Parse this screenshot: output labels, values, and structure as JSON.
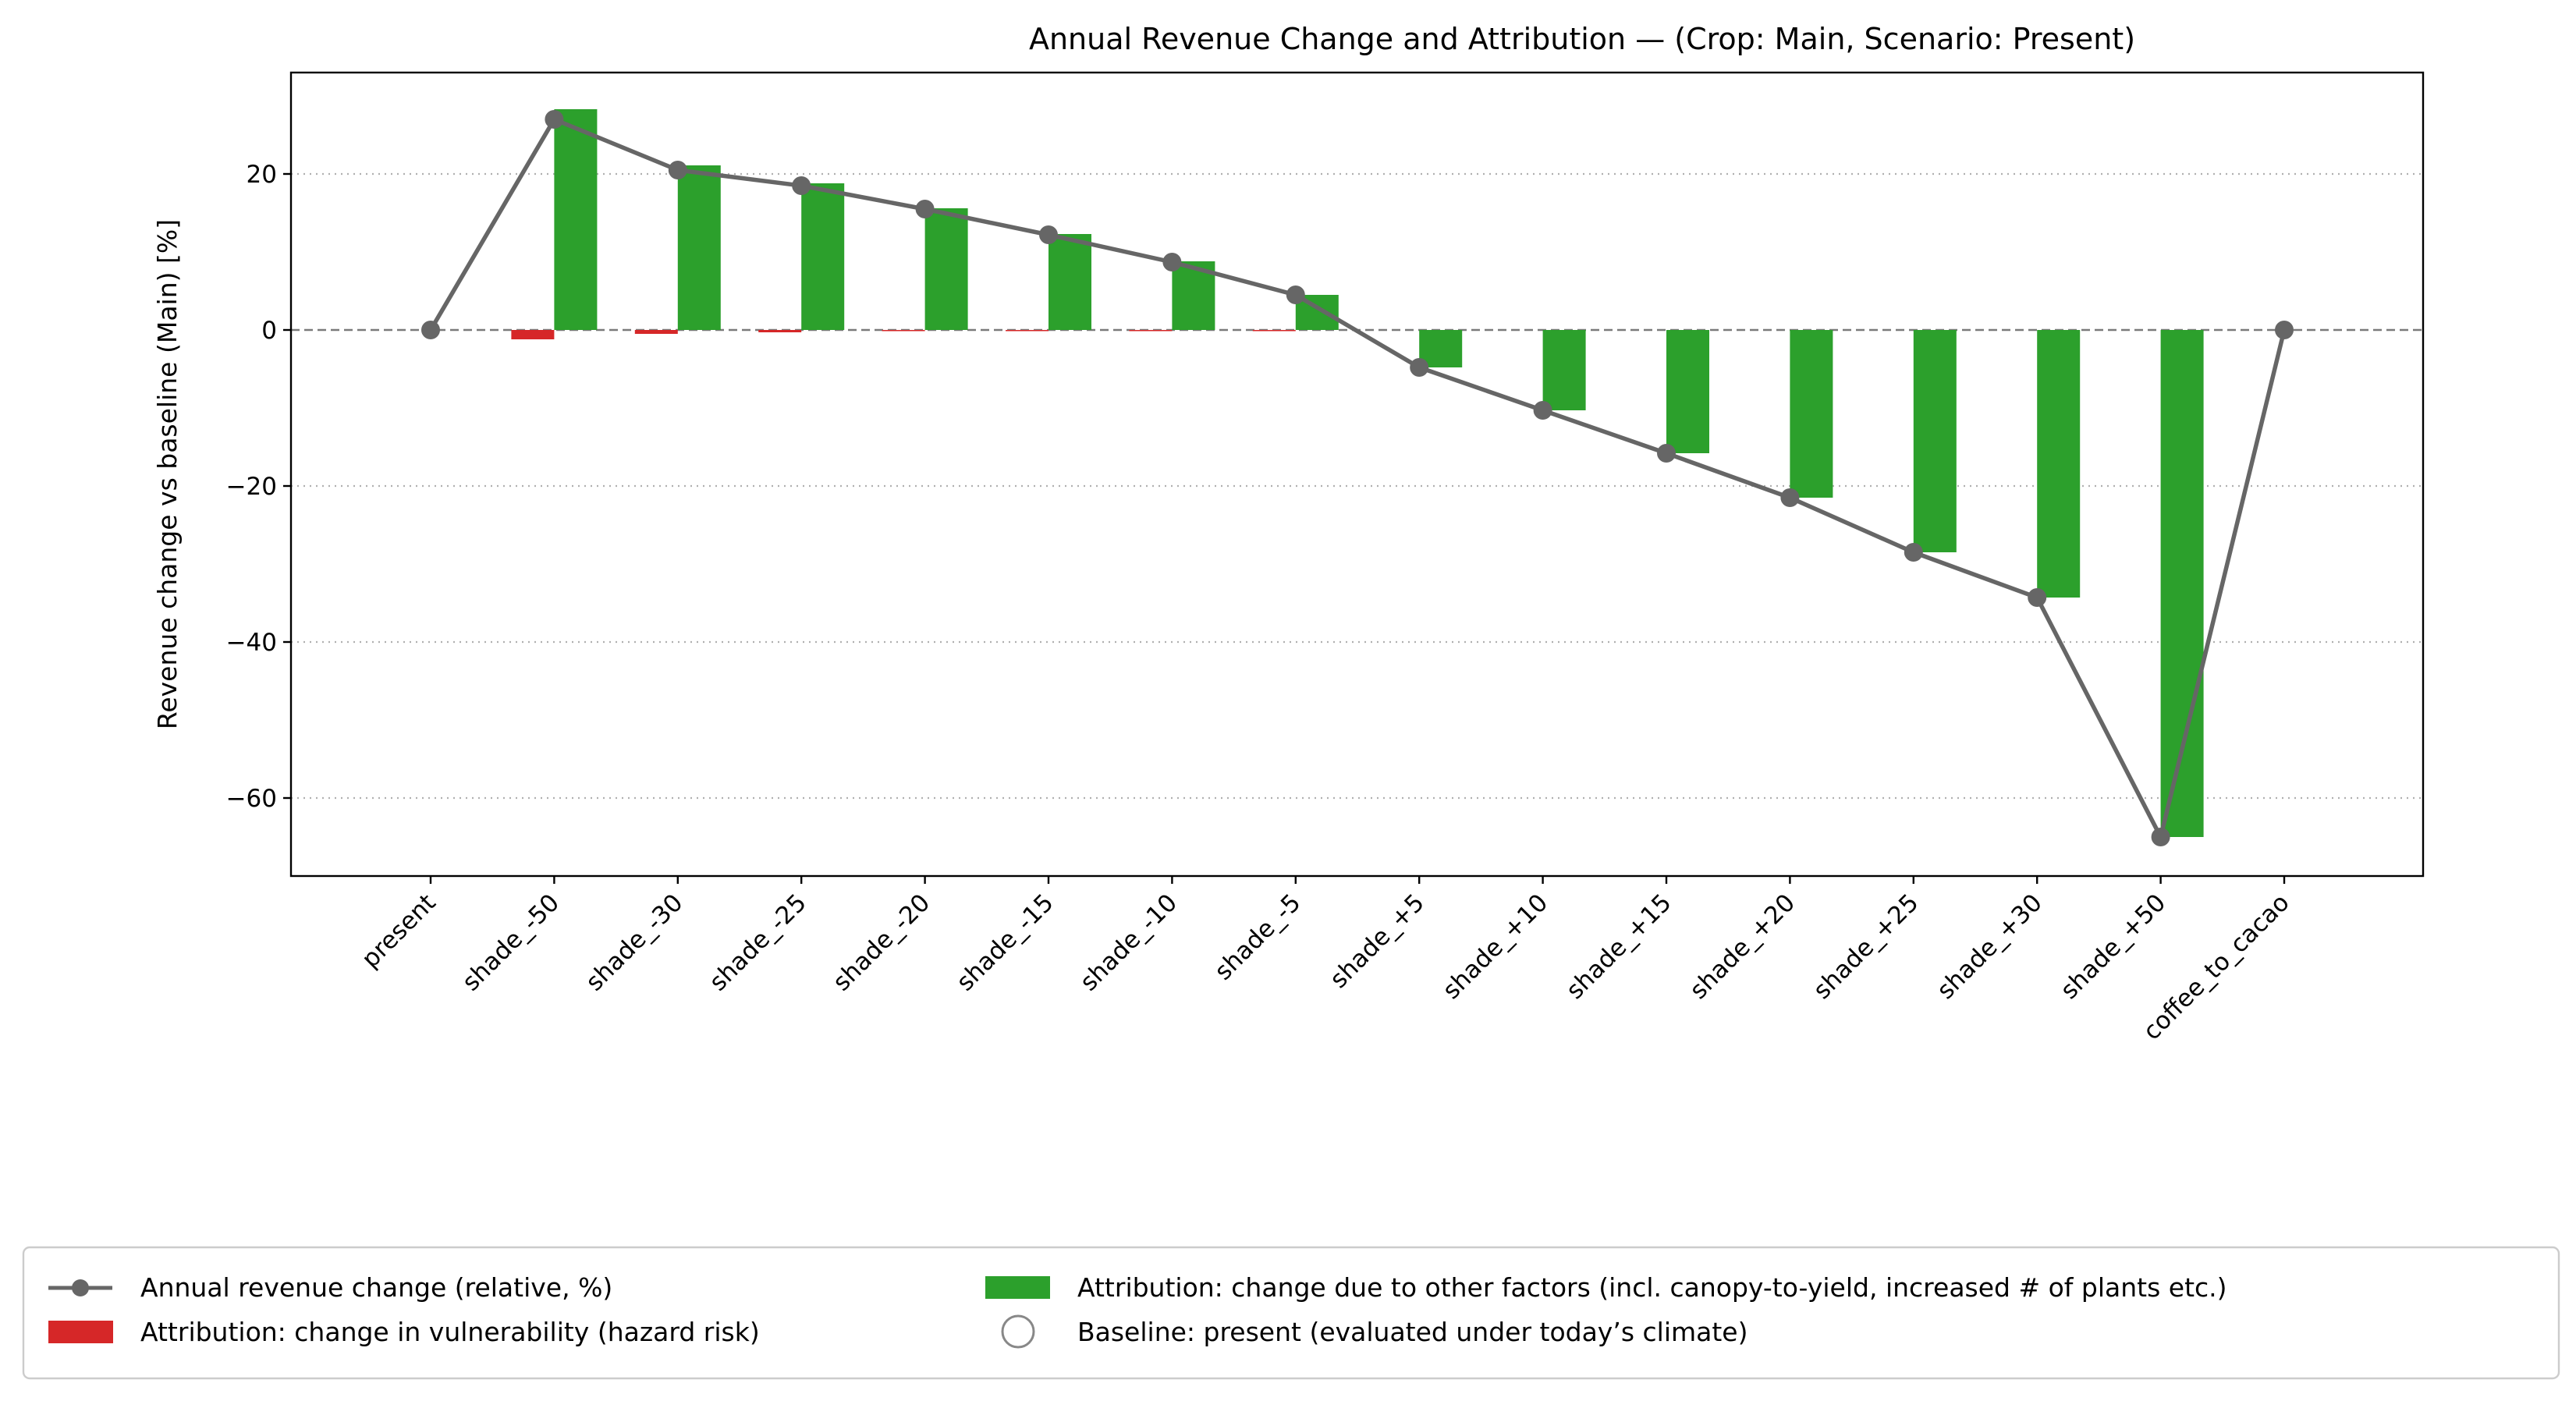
{
  "chart_data": {
    "type": "bar",
    "title": "Annual Revenue Change and Attribution — (Crop: Main, Scenario: Present)",
    "xlabel": "",
    "ylabel": "Revenue change vs baseline (Main) [%]",
    "ylim": [
      -70,
      33
    ],
    "yticks": [
      20,
      0,
      -20,
      -40,
      -60
    ],
    "yticklabels": [
      "20",
      "0",
      "−20",
      "−40",
      "−60"
    ],
    "grid": true,
    "legend_position": "bottom",
    "categories": [
      "present",
      "shade_-50",
      "shade_-30",
      "shade_-25",
      "shade_-20",
      "shade_-15",
      "shade_-10",
      "shade_-5",
      "shade_+5",
      "shade_+10",
      "shade_+15",
      "shade_+20",
      "shade_+25",
      "shade_+30",
      "shade_+50",
      "coffee_to_cacao"
    ],
    "series": [
      {
        "name": "Annual revenue change (relative, %)",
        "kind": "line",
        "color": "#666666",
        "values": [
          0,
          27.0,
          20.5,
          18.5,
          15.5,
          12.2,
          8.7,
          4.5,
          -4.8,
          -10.3,
          -15.8,
          -21.5,
          -28.5,
          -34.3,
          -65.0,
          0
        ]
      },
      {
        "name": "Attribution: change in vulnerability (hazard risk)",
        "kind": "bar",
        "color": "#d62728",
        "values": [
          0,
          -1.2,
          -0.5,
          -0.3,
          -0.15,
          -0.1,
          -0.05,
          -0.02,
          0,
          0,
          0,
          0,
          0,
          0,
          0,
          0
        ]
      },
      {
        "name": "Attribution: change due to other factors (incl. canopy-to-yield, increased # of plants etc.)",
        "kind": "bar",
        "color": "#2ca02c",
        "values": [
          0,
          28.3,
          21.1,
          18.8,
          15.6,
          12.3,
          8.8,
          4.5,
          -4.8,
          -10.3,
          -15.8,
          -21.5,
          -28.5,
          -34.3,
          -65.0,
          0
        ]
      }
    ],
    "baseline_legend": "Baseline: present (evaluated under today’s climate)"
  }
}
